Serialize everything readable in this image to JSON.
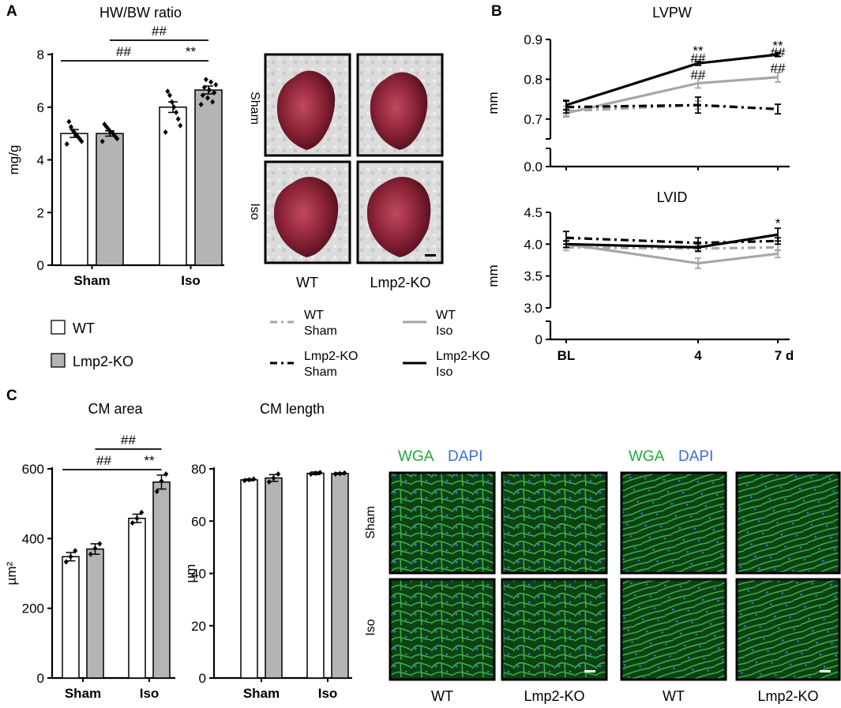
{
  "panel_letters": [
    "A",
    "B",
    "C"
  ],
  "colors": {
    "wt_bar": "#ffffff",
    "ko_bar": "#b4b4b4",
    "wt_sham_line": "#a6a6a6",
    "ko_sham_line": "#000000",
    "wt_iso_line": "#a6a6a6",
    "ko_iso_line": "#000000",
    "wga_label": "#1faa3c",
    "dapi_label": "#3a6fd8",
    "heart_tissue": "#8a2235",
    "micrograph_bg": "#0c3e12"
  },
  "legend_a": {
    "items": [
      {
        "label": "WT",
        "swatch": "wt_bar"
      },
      {
        "label": "Lmp2-KO",
        "swatch": "ko_bar"
      }
    ]
  },
  "legend_b": {
    "items": [
      {
        "line1": "WT",
        "line2": "Sham",
        "style": "dashdot",
        "color": "wt_sham_line"
      },
      {
        "line1": "WT",
        "line2": "Iso",
        "style": "solid",
        "color": "wt_iso_line"
      },
      {
        "line1": "Lmp2-KO",
        "line2": "Sham",
        "style": "dashdot",
        "color": "ko_sham_line"
      },
      {
        "line1": "Lmp2-KO",
        "line2": "Iso",
        "style": "solid",
        "color": "ko_iso_line"
      }
    ]
  },
  "images_a": {
    "row_labels": [
      "Sham",
      "Iso"
    ],
    "col_labels": [
      "WT",
      "Lmp2-KO"
    ]
  },
  "images_c": {
    "stain_label_1": "WGA",
    "stain_label_2": "DAPI",
    "row_labels": [
      "Sham",
      "Iso"
    ],
    "col_labels": [
      "WT",
      "Lmp2-KO",
      "WT",
      "Lmp2-KO"
    ]
  },
  "chart_data": [
    {
      "id": "hwbw",
      "panel": "A",
      "type": "bar",
      "title": "HW/BW ratio",
      "ylabel": "mg/g",
      "ylim": [
        0,
        8
      ],
      "yticks": [
        "0",
        "2",
        "4",
        "6",
        "8"
      ],
      "categories": [
        "Sham",
        "Iso"
      ],
      "series": [
        {
          "name": "WT",
          "values": [
            5.0,
            6.0
          ],
          "sem": [
            0.15,
            0.2
          ],
          "points": [
            [
              4.6,
              4.7,
              4.8,
              4.9,
              5.0,
              5.1,
              5.25,
              5.45
            ],
            [
              5.05,
              5.3,
              5.55,
              5.8,
              6.0,
              6.2,
              6.45,
              6.6
            ]
          ]
        },
        {
          "name": "Lmp2-KO",
          "values": [
            5.0,
            6.65
          ],
          "sem": [
            0.1,
            0.15
          ],
          "points": [
            [
              4.7,
              4.8,
              4.9,
              5.0,
              5.05,
              5.15,
              5.25,
              5.35
            ],
            [
              6.1,
              6.2,
              6.35,
              6.45,
              6.55,
              6.65,
              6.75,
              6.85,
              6.95,
              7.05
            ]
          ]
        }
      ],
      "annotations": [
        {
          "text": "##",
          "from": [
            0,
            0
          ],
          "to": [
            1,
            0
          ],
          "level": 1
        },
        {
          "text": "**",
          "from": [
            1,
            0
          ],
          "to": [
            1,
            1
          ],
          "level": 1
        },
        {
          "text": "##",
          "from": [
            0,
            1
          ],
          "to": [
            1,
            1
          ],
          "level": 2
        }
      ]
    },
    {
      "id": "lvpw",
      "panel": "B",
      "type": "line",
      "title": "LVPW",
      "ylabel": "mm",
      "x": [
        "BL",
        "4",
        "7"
      ],
      "xticks": [
        "BL",
        "4",
        "7 d"
      ],
      "ylim": [
        0.65,
        0.9
      ],
      "yticks": [
        "0.7",
        "0.8",
        "0.9"
      ],
      "axis_break": true,
      "zero_tick": "0.0",
      "series": [
        {
          "name": "WT Sham",
          "values": [
            0.72,
            0.735,
            0.725
          ],
          "err": [
            0.012,
            0.01,
            0.012
          ],
          "style": "dashdot",
          "color": "#a6a6a6"
        },
        {
          "name": "WT Iso",
          "values": [
            0.715,
            0.79,
            0.805
          ],
          "err": [
            0.01,
            0.012,
            0.012
          ],
          "style": "solid",
          "color": "#a6a6a6"
        },
        {
          "name": "Lmp2-KO Sham",
          "values": [
            0.73,
            0.735,
            0.725
          ],
          "err": [
            0.015,
            0.02,
            0.012
          ],
          "style": "dashdot",
          "color": "#000000"
        },
        {
          "name": "Lmp2-KO Iso",
          "values": [
            0.735,
            0.84,
            0.862
          ],
          "err": [
            0.012,
            0.005,
            0.005
          ],
          "style": "solid",
          "color": "#000000"
        }
      ],
      "annotations": [
        {
          "text": "**",
          "x": 1,
          "y": 0.872
        },
        {
          "text": "##",
          "x": 1,
          "y": 0.853
        },
        {
          "text": "##",
          "x": 1,
          "y": 0.812
        },
        {
          "text": "**",
          "x": 2,
          "y": 0.885
        },
        {
          "text": "##",
          "x": 2,
          "y": 0.868
        },
        {
          "text": "##",
          "x": 2,
          "y": 0.829
        }
      ]
    },
    {
      "id": "lvid",
      "panel": "B",
      "type": "line",
      "title": "LVID",
      "ylabel": "mm",
      "x": [
        "BL",
        "4",
        "7"
      ],
      "xticks": [
        "BL",
        "4",
        "7 d"
      ],
      "ylim": [
        3.0,
        4.5
      ],
      "yticks": [
        "3.0",
        "3.5",
        "4.0",
        "4.5"
      ],
      "axis_break": true,
      "zero_tick": "0",
      "series": [
        {
          "name": "WT Sham",
          "values": [
            3.95,
            3.93,
            3.95
          ],
          "err": [
            0.05,
            0.05,
            0.05
          ],
          "style": "dashdot",
          "color": "#a6a6a6"
        },
        {
          "name": "WT Iso",
          "values": [
            4.0,
            3.7,
            3.85
          ],
          "err": [
            0.06,
            0.08,
            0.06
          ],
          "style": "solid",
          "color": "#a6a6a6"
        },
        {
          "name": "Lmp2-KO Sham",
          "values": [
            4.1,
            4.02,
            4.05
          ],
          "err": [
            0.1,
            0.08,
            0.05
          ],
          "style": "dashdot",
          "color": "#000000"
        },
        {
          "name": "Lmp2-KO Iso",
          "values": [
            4.0,
            3.95,
            4.15
          ],
          "err": [
            0.05,
            0.06,
            0.1
          ],
          "style": "solid",
          "color": "#000000"
        }
      ],
      "annotations": [
        {
          "text": "*",
          "x": 2,
          "y": 4.33
        }
      ]
    },
    {
      "id": "cmarea",
      "panel": "C",
      "type": "bar",
      "title": "CM area",
      "ylabel": "µm²",
      "ylim": [
        0,
        600
      ],
      "yticks": [
        "0",
        "200",
        "400",
        "600"
      ],
      "categories": [
        "Sham",
        "Iso"
      ],
      "series": [
        {
          "name": "WT",
          "values": [
            348,
            458
          ],
          "sem": [
            12,
            12
          ],
          "points": [
            [
              333,
              348,
              365
            ],
            [
              445,
              458,
              475
            ]
          ]
        },
        {
          "name": "Lmp2-KO",
          "values": [
            370,
            562
          ],
          "sem": [
            15,
            20
          ],
          "points": [
            [
              355,
              372,
              385
            ],
            [
              535,
              565,
              585
            ]
          ]
        }
      ],
      "annotations": [
        {
          "text": "##",
          "from": [
            0,
            0
          ],
          "to": [
            1,
            0
          ],
          "level": 1
        },
        {
          "text": "**",
          "from": [
            1,
            0
          ],
          "to": [
            1,
            1
          ],
          "level": 1
        },
        {
          "text": "##",
          "from": [
            0,
            1
          ],
          "to": [
            1,
            1
          ],
          "level": 2
        }
      ]
    },
    {
      "id": "cmlength",
      "panel": "C",
      "type": "bar",
      "title": "CM length",
      "ylabel": "µm",
      "ylim": [
        0,
        80
      ],
      "yticks": [
        "0",
        "20",
        "40",
        "60",
        "80"
      ],
      "categories": [
        "Sham",
        "Iso"
      ],
      "series": [
        {
          "name": "WT",
          "values": [
            75.8,
            78.3
          ],
          "sem": [
            0.3,
            0.5
          ],
          "points": [
            [
              75.5,
              75.8,
              76.1
            ],
            [
              78.0,
              78.3,
              78.6
            ]
          ]
        },
        {
          "name": "Lmp2-KO",
          "values": [
            76.5,
            78.2
          ],
          "sem": [
            1.3,
            0.3
          ],
          "points": [
            [
              75.0,
              76.5,
              78.0
            ],
            [
              78.0,
              78.2,
              78.4
            ]
          ]
        }
      ],
      "annotations": []
    }
  ]
}
